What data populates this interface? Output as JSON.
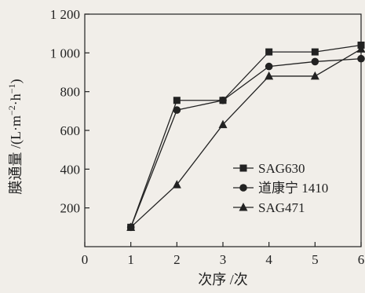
{
  "chart_data": {
    "type": "line",
    "title": "",
    "xlabel": "次序 /次",
    "ylabel": "膜通量 /(L·m⁻²·h⁻¹)",
    "ylabel_parts": [
      "膜通量 /(L·m",
      "−2",
      "·h",
      "−1",
      ")"
    ],
    "x": [
      1,
      2,
      3,
      4,
      5,
      6
    ],
    "xlim": [
      0,
      6
    ],
    "ylim": [
      0,
      1200
    ],
    "x_ticks": [
      "0",
      "1",
      "2",
      "3",
      "4",
      "5",
      "6"
    ],
    "y_ticks": [
      {
        "value": 200,
        "label": "200"
      },
      {
        "value": 400,
        "label": "400"
      },
      {
        "value": 600,
        "label": "600"
      },
      {
        "value": 800,
        "label": "800"
      },
      {
        "value": 1000,
        "label": "1 000"
      },
      {
        "value": 1200,
        "label": "1 200"
      }
    ],
    "grid": false,
    "legend_position": "center-right",
    "series": [
      {
        "name": "SAG630",
        "marker": "square",
        "color": "#222222",
        "values": [
          100,
          755,
          755,
          1005,
          1005,
          1040
        ]
      },
      {
        "name": "道康宁 1410",
        "marker": "circle",
        "color": "#222222",
        "values": [
          100,
          705,
          755,
          930,
          955,
          970
        ]
      },
      {
        "name": "SAG471",
        "marker": "triangle",
        "color": "#222222",
        "values": [
          100,
          320,
          630,
          880,
          880,
          1020
        ]
      }
    ]
  }
}
